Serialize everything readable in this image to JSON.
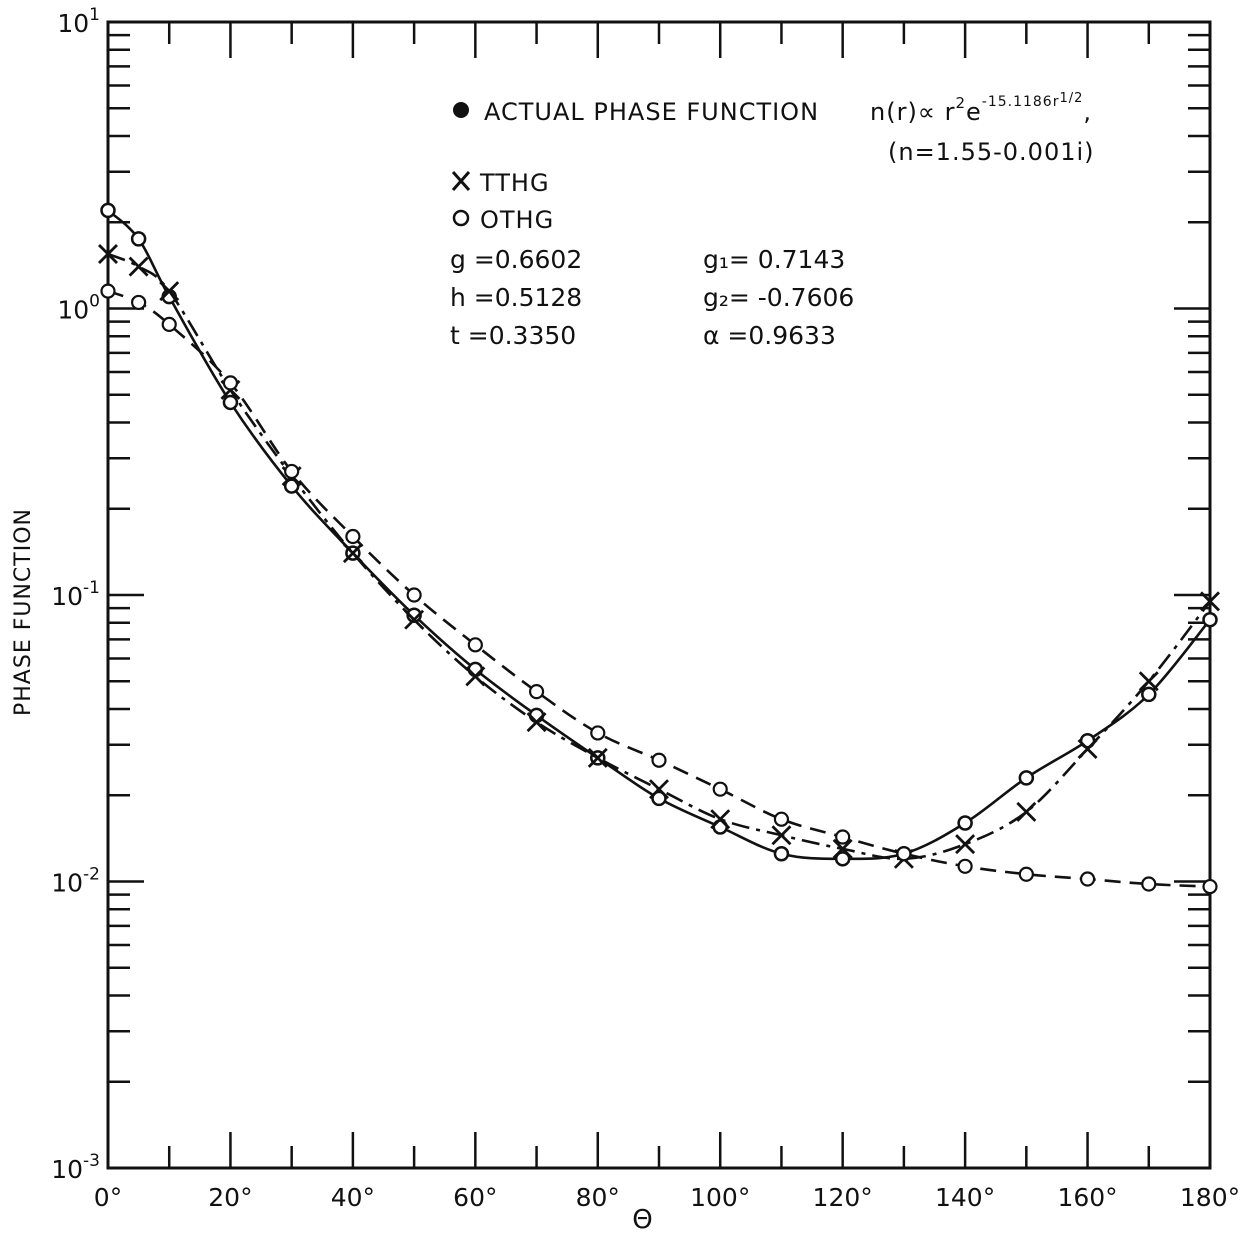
{
  "chart_data": {
    "type": "line",
    "title": "",
    "xlabel": "Θ",
    "ylabel": "PHASE FUNCTION",
    "xlim": [
      0,
      180
    ],
    "ylim": [
      0.001,
      10
    ],
    "yscale": "log",
    "grid": false,
    "legend_position": "top-right",
    "x_ticks": [
      "0°",
      "20°",
      "40°",
      "60°",
      "80°",
      "100°",
      "120°",
      "140°",
      "160°",
      "180°"
    ],
    "y_ticks": [
      {
        "base": "10",
        "exp": "1"
      },
      {
        "base": "10",
        "exp": "0"
      },
      {
        "base": "10",
        "exp": "-1"
      },
      {
        "base": "10",
        "exp": "-2"
      },
      {
        "base": "10",
        "exp": "-3"
      }
    ],
    "legend": {
      "actual_label": "ACTUAL PHASE FUNCTION",
      "actual_formula": "n(r)∝ r²e^{-15.1186r^{1/2}},",
      "actual_index": "(n=1.55-0.001i)",
      "tthg_label": "TTHG",
      "othg_label": "OTHG"
    },
    "params": {
      "g": "g =0.6602",
      "h": "h =0.5128",
      "t": "t =0.3350",
      "g1": "g₁= 0.7143",
      "g2": "g₂= -0.7606",
      "alpha": "α =0.9633"
    },
    "series": [
      {
        "name": "ACTUAL PHASE FUNCTION",
        "style": "solid",
        "marker": "circle",
        "x": [
          0,
          5,
          10,
          20,
          30,
          40,
          50,
          60,
          70,
          80,
          90,
          100,
          110,
          120,
          130,
          140,
          150,
          160,
          170,
          180
        ],
        "y": [
          2.2,
          1.75,
          1.1,
          0.47,
          0.24,
          0.14,
          0.085,
          0.055,
          0.038,
          0.027,
          0.0195,
          0.0155,
          0.0125,
          0.012,
          0.0125,
          0.016,
          0.023,
          0.031,
          0.045,
          0.082
        ]
      },
      {
        "name": "TTHG",
        "style": "dashdot",
        "marker": "x",
        "x": [
          0,
          5,
          10,
          20,
          30,
          40,
          50,
          60,
          70,
          80,
          90,
          100,
          110,
          120,
          130,
          140,
          150,
          160,
          170,
          180
        ],
        "y": [
          1.55,
          1.4,
          1.15,
          0.52,
          0.26,
          0.14,
          0.082,
          0.052,
          0.036,
          0.027,
          0.021,
          0.0165,
          0.0145,
          0.013,
          0.012,
          0.0135,
          0.0175,
          0.029,
          0.05,
          0.095
        ]
      },
      {
        "name": "OTHG",
        "style": "dashed",
        "marker": "open-circle",
        "x": [
          0,
          5,
          10,
          20,
          30,
          40,
          50,
          60,
          70,
          80,
          90,
          100,
          110,
          120,
          130,
          140,
          150,
          160,
          170,
          180
        ],
        "y": [
          1.15,
          1.05,
          0.88,
          0.55,
          0.27,
          0.16,
          0.1,
          0.067,
          0.046,
          0.033,
          0.0265,
          0.021,
          0.0165,
          0.0143,
          0.0125,
          0.0113,
          0.0106,
          0.0102,
          0.0098,
          0.0096
        ]
      }
    ],
    "colors": {
      "ink": "#111111",
      "background": "#ffffff"
    }
  }
}
